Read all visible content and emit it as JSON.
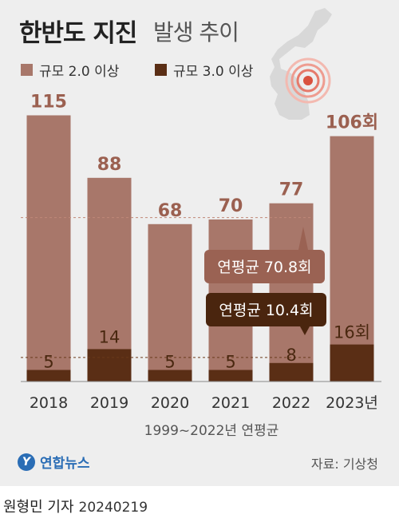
{
  "title": "한반도 지진",
  "subtitle": "발생 추이",
  "legend": [
    {
      "label": "규모 2.0 이상",
      "color": "#a8776a"
    },
    {
      "label": "규모 3.0 이상",
      "color": "#5a2e15"
    }
  ],
  "colors": {
    "m2_bar": "#a8776a",
    "m3_bar": "#5a2e15",
    "m2_label": "#9b6050",
    "m3_label": "#4a2810",
    "bubble_m2": "#9a6253",
    "bubble_m3": "#4a250e"
  },
  "chart_data": {
    "type": "bar",
    "categories": [
      "2018",
      "2019",
      "2020",
      "2021",
      "2022",
      "2023년"
    ],
    "series": [
      {
        "name": "규모 2.0 이상",
        "values": [
          115,
          88,
          68,
          70,
          77,
          106
        ]
      },
      {
        "name": "규모 3.0 이상",
        "values": [
          5,
          14,
          5,
          5,
          8,
          16
        ]
      }
    ],
    "value_labels": {
      "m2": [
        "115",
        "88",
        "68",
        "70",
        "77",
        "106회"
      ],
      "m3": [
        "5",
        "14",
        "5",
        "5",
        "8",
        "16회"
      ]
    },
    "reference_lines": [
      {
        "label": "연평균 70.8회",
        "value": 70.8
      },
      {
        "label": "연평균 10.4회",
        "value": 10.4
      }
    ],
    "ylim": [
      0,
      120
    ],
    "xlabel": "1999~2022년 연평균"
  },
  "footer": {
    "logo_text": "연합뉴스",
    "source": "자료: 기상청",
    "author": "원형민 기자",
    "date": "20240219"
  }
}
